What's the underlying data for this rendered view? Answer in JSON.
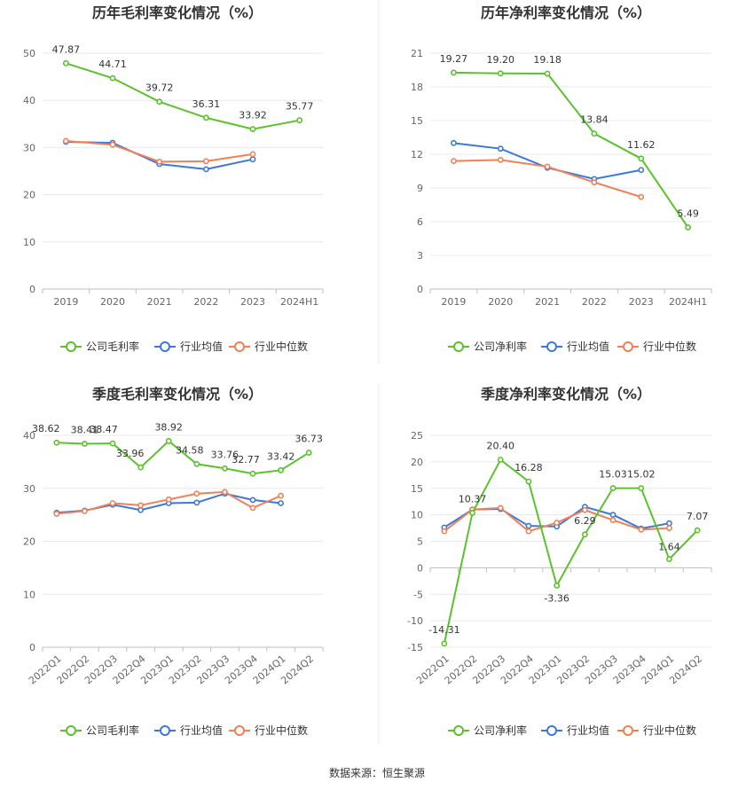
{
  "source_label": "数据来源：恒生聚源",
  "colors": {
    "company": "#5cc12d",
    "avg": "#3c78d8",
    "median": "#f08056",
    "grid": "#e6e8ef",
    "axis": "#bfbfbf",
    "divider": "#e8e8e8"
  },
  "chart_data": [
    {
      "type": "line",
      "title": "历年毛利率变化情况（%）",
      "categories": [
        "2019",
        "2020",
        "2021",
        "2022",
        "2023",
        "2024H1"
      ],
      "ylim": [
        0,
        50
      ],
      "yticks": [
        0,
        10,
        20,
        30,
        40,
        50
      ],
      "rotate_x": false,
      "series": [
        {
          "name": "公司毛利率",
          "key": "company",
          "values": [
            47.87,
            44.71,
            39.72,
            36.31,
            33.92,
            35.77
          ],
          "labels": [
            "47.87",
            "44.71",
            "39.72",
            "36.31",
            "33.92",
            "35.77"
          ]
        },
        {
          "name": "行业均值",
          "key": "avg",
          "values": [
            31.2,
            31.0,
            26.5,
            25.4,
            27.5,
            null
          ]
        },
        {
          "name": "行业中位数",
          "key": "median",
          "values": [
            31.4,
            30.6,
            27.0,
            27.1,
            28.6,
            null
          ]
        }
      ]
    },
    {
      "type": "line",
      "title": "历年净利率变化情况（%）",
      "categories": [
        "2019",
        "2020",
        "2021",
        "2022",
        "2023",
        "2024H1"
      ],
      "ylim": [
        0,
        21
      ],
      "yticks": [
        0,
        3,
        6,
        9,
        12,
        15,
        18,
        21
      ],
      "rotate_x": false,
      "series": [
        {
          "name": "公司净利率",
          "key": "company",
          "values": [
            19.27,
            19.2,
            19.18,
            13.84,
            11.62,
            5.49
          ],
          "labels": [
            "19.27",
            "19.20",
            "19.18",
            "13.84",
            "11.62",
            "5.49"
          ]
        },
        {
          "name": "行业均值",
          "key": "avg",
          "values": [
            13.0,
            12.5,
            10.8,
            9.8,
            10.6,
            null
          ]
        },
        {
          "name": "行业中位数",
          "key": "median",
          "values": [
            11.4,
            11.5,
            10.9,
            9.5,
            8.2,
            null
          ]
        }
      ]
    },
    {
      "type": "line",
      "title": "季度毛利率变化情况（%）",
      "categories": [
        "2022Q1",
        "2022Q2",
        "2022Q3",
        "2022Q4",
        "2023Q1",
        "2023Q2",
        "2023Q3",
        "2023Q4",
        "2024Q1",
        "2024Q2"
      ],
      "ylim": [
        0,
        40
      ],
      "yticks": [
        0,
        10,
        20,
        30,
        40
      ],
      "rotate_x": true,
      "series": [
        {
          "name": "公司毛利率",
          "key": "company",
          "values": [
            38.62,
            38.41,
            38.47,
            33.96,
            38.92,
            34.58,
            33.76,
            32.77,
            33.42,
            36.73
          ],
          "labels": [
            "38.62",
            "38.41",
            "38.47",
            "33.96",
            "38.92",
            "34.58",
            "33.76",
            "32.77",
            "33.42",
            "36.73"
          ]
        },
        {
          "name": "行业均值",
          "key": "avg",
          "values": [
            25.4,
            25.8,
            26.9,
            25.9,
            27.2,
            27.3,
            29.0,
            27.8,
            27.2,
            null
          ]
        },
        {
          "name": "行业中位数",
          "key": "median",
          "values": [
            25.2,
            25.7,
            27.2,
            26.8,
            27.9,
            29.0,
            29.3,
            26.3,
            28.6,
            null
          ]
        }
      ]
    },
    {
      "type": "line",
      "title": "季度净利率变化情况（%）",
      "categories": [
        "2022Q1",
        "2022Q2",
        "2022Q3",
        "2022Q4",
        "2023Q1",
        "2023Q2",
        "2023Q3",
        "2023Q4",
        "2024Q1",
        "2024Q2"
      ],
      "ylim": [
        -15,
        25
      ],
      "yticks": [
        -15,
        -10,
        -5,
        0,
        5,
        10,
        15,
        20,
        25
      ],
      "rotate_x": true,
      "series": [
        {
          "name": "公司净利率",
          "key": "company",
          "values": [
            -14.31,
            10.37,
            20.4,
            16.28,
            -3.36,
            6.29,
            15.03,
            15.02,
            1.64,
            7.07
          ],
          "labels": [
            "-14.31",
            "10.37",
            "20.40",
            "16.28",
            "-3.36",
            "6.29",
            "15.03",
            "15.02",
            "1.64",
            "7.07"
          ]
        },
        {
          "name": "行业均值",
          "key": "avg",
          "values": [
            7.6,
            11.0,
            11.1,
            7.9,
            7.8,
            11.5,
            10.0,
            7.4,
            8.4,
            null
          ]
        },
        {
          "name": "行业中位数",
          "key": "median",
          "values": [
            6.9,
            11.0,
            11.3,
            6.9,
            8.5,
            10.9,
            9.0,
            7.2,
            7.5,
            null
          ]
        }
      ]
    }
  ]
}
